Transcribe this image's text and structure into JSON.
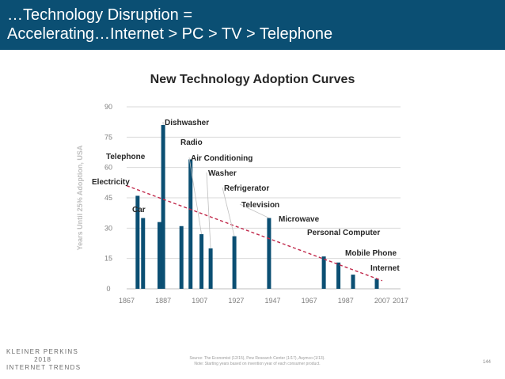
{
  "header": {
    "line1": "…Technology Disruption =",
    "line2": "Accelerating…Internet > PC > TV > Telephone"
  },
  "footer": {
    "logo_line1": "KLEINER PERKINS",
    "logo_line2": "2018",
    "logo_line3": "INTERNET TRENDS",
    "source_line1": "Source: The Economist (12/15), Pew Research Center (1/17), Asymco (1/13).",
    "source_line2": "Note: Starting years based on invention year of each consumer product.",
    "page_number": "144"
  },
  "colors": {
    "header_bg": "#0b4f73",
    "bar": "#0b4f73",
    "trend": "#c0284a"
  },
  "chart_data": {
    "type": "bar",
    "title": "New Technology Adoption Curves",
    "xlabel": "",
    "ylabel": "Years Until 25% Adoption, USA",
    "xlim": [
      1867,
      2017
    ],
    "ylim": [
      0,
      90
    ],
    "x_ticks": [
      1867,
      1887,
      1907,
      1927,
      1947,
      1967,
      1987,
      2007,
      2017
    ],
    "y_ticks": [
      0,
      15,
      30,
      45,
      60,
      75,
      90
    ],
    "grid": true,
    "series": [
      {
        "points": [
          {
            "year": 1873,
            "value": 46,
            "label": "Electricity"
          },
          {
            "year": 1876,
            "value": 35,
            "label": "Telephone"
          },
          {
            "year": 1885,
            "value": 33,
            "label": "Car"
          },
          {
            "year": 1887,
            "value": 81,
            "label": "Dishwasher"
          },
          {
            "year": 1897,
            "value": 31,
            "label": ""
          },
          {
            "year": 1902,
            "value": 64,
            "label": "Radio"
          },
          {
            "year": 1908,
            "value": 27,
            "label": "Air Conditioning"
          },
          {
            "year": 1913,
            "value": 20,
            "label": "Washer"
          },
          {
            "year": 1926,
            "value": 26,
            "label": "Refrigerator"
          },
          {
            "year": 1945,
            "value": 35,
            "label": "Television"
          },
          {
            "year": 1975,
            "value": 16,
            "label": "Microwave"
          },
          {
            "year": 1983,
            "value": 13,
            "label": "Personal Computer"
          },
          {
            "year": 1991,
            "value": 7,
            "label": "Mobile Phone"
          },
          {
            "year": 2004,
            "value": 5,
            "label": "Internet"
          }
        ]
      }
    ],
    "trendline": {
      "from": [
        1867,
        51
      ],
      "to": [
        2007,
        4
      ]
    }
  }
}
